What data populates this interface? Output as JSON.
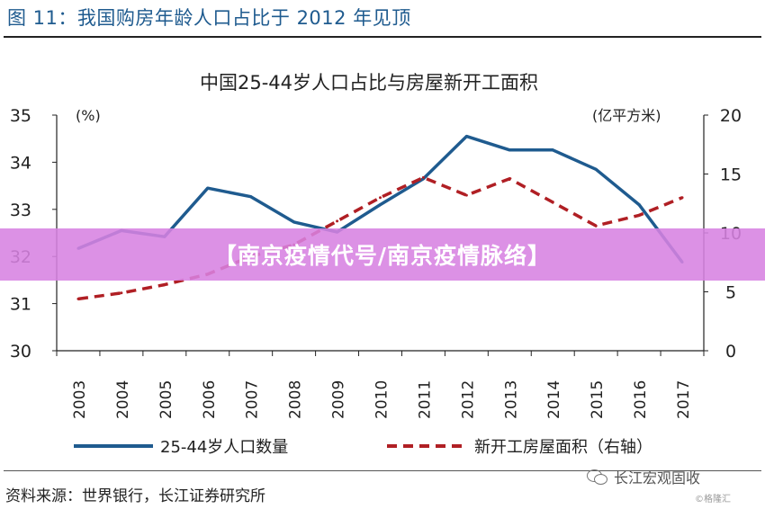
{
  "figure_label": "图 11：我国购房年龄人口占比于 2012 年见顶",
  "source": "资料来源：世界银行，长江证券研究所",
  "wechat_label": "长江宏观固收",
  "watermark": "©格隆汇",
  "banner_text": "【南京疫情代号/南京疫情脉络】",
  "colors": {
    "series_population": "#1f5b8f",
    "series_construction": "#b01f24",
    "banner": "#d782e1",
    "title": "#1f5b8f"
  },
  "chart_data": {
    "type": "line",
    "title": "中国25-44岁人口占比与房屋新开工面积",
    "left_axis_unit": "(%)",
    "right_axis_unit": "(亿平方米)",
    "categories": [
      "2003",
      "2004",
      "2005",
      "2006",
      "2007",
      "2008",
      "2009",
      "2010",
      "2011",
      "2012",
      "2013",
      "2014",
      "2015",
      "2016",
      "2017"
    ],
    "left_axis": {
      "min": 30,
      "max": 35,
      "ticks": [
        30,
        31,
        32,
        33,
        34,
        35
      ]
    },
    "right_axis": {
      "min": 0,
      "max": 20,
      "ticks": [
        0,
        5,
        10,
        15,
        20
      ]
    },
    "grid": false,
    "legend_position": "bottom",
    "series": [
      {
        "name": "25-44岁人口数量",
        "axis": "left",
        "style": "solid",
        "values": [
          32.17,
          32.55,
          32.42,
          33.45,
          33.27,
          32.73,
          32.52,
          33.1,
          33.65,
          34.55,
          34.26,
          34.26,
          33.85,
          33.1,
          31.88
        ]
      },
      {
        "name": "新开工房屋面积（右轴）",
        "axis": "right",
        "style": "dashed",
        "values": [
          4.4,
          4.9,
          5.6,
          6.5,
          8.0,
          9.0,
          11.0,
          13.0,
          14.7,
          13.2,
          14.6,
          12.6,
          10.6,
          11.5,
          13.0
        ]
      }
    ]
  }
}
